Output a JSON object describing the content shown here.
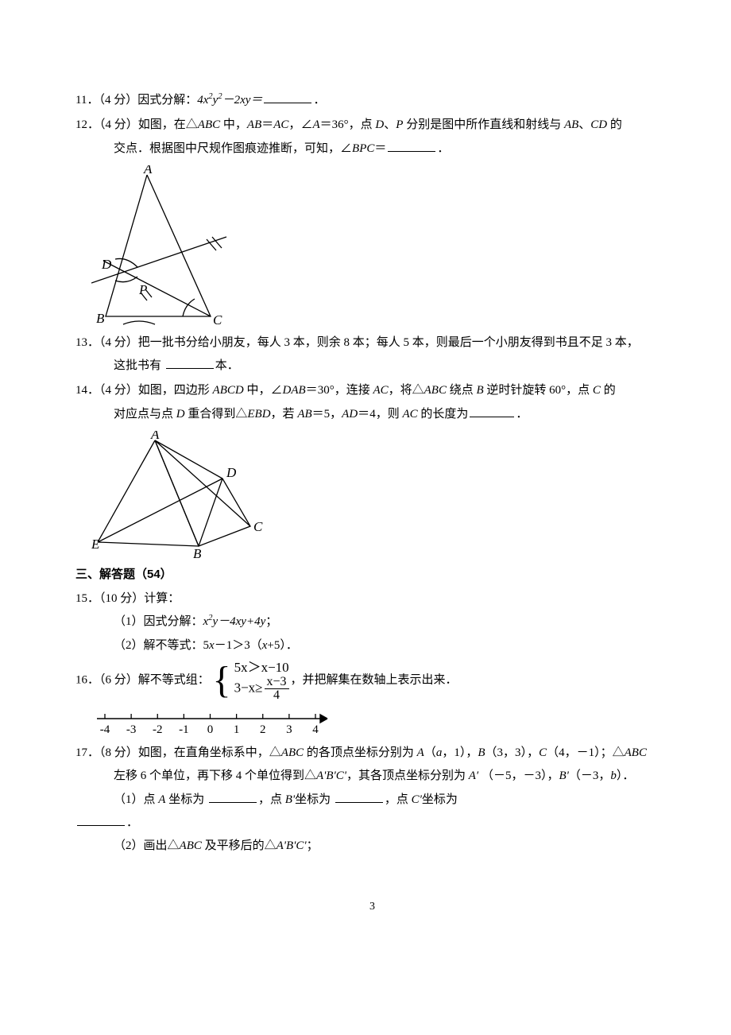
{
  "page": {
    "number": "3"
  },
  "q11": {
    "label": "11．",
    "points": "（4 分）",
    "text_a": "因式分解：",
    "expr": "4x²y² － 2xy＝",
    "tail": "．"
  },
  "q12": {
    "label": "12．",
    "points": "（4 分）",
    "text_a": "如图，在△",
    "abc": "ABC",
    "text_b": " 中，",
    "eq1_lhs": "AB",
    "eq1_mid": "＝",
    "eq1_rhs": "AC",
    "comma": "，",
    "ang_lhs": "∠A",
    "ang_mid": "＝",
    "ang_rhs": "36°",
    "text_c": "，点 ",
    "D": "D",
    "P": "P",
    "text_d": " 分别是图中所作直线和射线与 ",
    "AB": "AB",
    "CD": "CD",
    "text_e": " 的",
    "line2_a": "交点．根据图中尺规作图痕迹推断，可知，",
    "ang2_lhs": "∠BPC",
    "ang2_mid": "＝",
    "tail": "．",
    "fig": {
      "A": "A",
      "B": "B",
      "C": "C",
      "D": "D",
      "P": "P",
      "stroke": "#000000",
      "fill": "#ffffff"
    }
  },
  "q13": {
    "label": "13．",
    "points": "（4 分）",
    "text_a": "把一批书分给小朋友，每人 3 本，则余 8 本；每人 5 本，则最后一个小朋友得到书且不足 3 本，",
    "line2_a": "这批书有 ",
    "line2_b": "本．"
  },
  "q14": {
    "label": "14．",
    "points": "（4 分）",
    "text_a": "如图，四边形 ",
    "ABCD": "ABCD",
    "text_b": " 中，",
    "ang_lhs": "∠DAB",
    "ang_mid": "＝",
    "ang_rhs": "30°",
    "text_c": "，连接 ",
    "AC": "AC",
    "text_d": "，将△",
    "ABCtri": "ABC",
    "text_e": " 绕点 ",
    "B": "B",
    "text_f": " 逆时针旋转 60°，点 ",
    "C": "C",
    "text_g": " 的",
    "line2_a": "对应点与点 ",
    "D": "D",
    "line2_b": " 重合得到△",
    "EBD": "EBD",
    "line2_c": "，若 ",
    "ab_lhs": "AB",
    "ab_mid": "＝",
    "ab_rhs": "5",
    "line2_d": "，",
    "ad_lhs": "AD",
    "ad_mid": "＝",
    "ad_rhs": "4",
    "line2_e": "，则 ",
    "AC2": "AC",
    "line2_f": " 的长度为",
    "tail": "．",
    "fig": {
      "A": "A",
      "B": "B",
      "C": "C",
      "D": "D",
      "E": "E",
      "stroke": "#000000"
    }
  },
  "sec3": {
    "title": "三、解答题（54）"
  },
  "q15": {
    "label": "15．",
    "points": "（10 分）",
    "text": "计算：",
    "p1_label": "（1）",
    "p1_text": "因式分解：",
    "p1_expr": "x²y － 4xy+4y",
    "p1_tail": "；",
    "p2_label": "（2）",
    "p2_text": "解不等式：",
    "p2_expr": "5x － 1＞3（x+5）",
    "p2_tail": "．"
  },
  "q16": {
    "label": "16．",
    "points": "（6 分）",
    "text_a": "解不等式组：",
    "sys_row1": "5x＞x−10",
    "sys_row2_a": "3−x≥",
    "sys_row2_frac_num": "x−3",
    "sys_row2_frac_den": "4",
    "text_b": "，并把解集在数轴上表示出来．",
    "numberline": {
      "min": -4,
      "max": 4,
      "ticks": [
        "-4",
        "-3",
        "-2",
        "-1",
        "0",
        "1",
        "2",
        "3",
        "4"
      ],
      "stroke": "#000000"
    }
  },
  "q17": {
    "label": "17．",
    "points": "（8 分）",
    "text_a": "如图，在直角坐标系中，△",
    "ABC": "ABC",
    "text_b": " 的各顶点坐标分别为 ",
    "A": "A",
    "Acoord": "（a，1）",
    "B": "B",
    "Bcoord": "（3，3）",
    "C": "C",
    "Ccoord": "（4，－1）",
    "text_c": "；△",
    "ABC2": "ABC",
    "line2_a": "左移 6 个单位，再下移 4 个单位得到△",
    "ApBpCp": "A'B'C'",
    "line2_b": "，其各顶点坐标分别为 ",
    "Ap": "A′",
    "Apc": "（－5，－3）",
    "Bp": "B'",
    "Bpc": "（－3，b）",
    "tail2": "．",
    "p1_label": "（1）",
    "p1_a": "点 ",
    "p1_A": "A",
    "p1_b": " 坐标为 ",
    "p1_c": "，点 ",
    "p1_Bp": "B'",
    "p1_d": "坐标为 ",
    "p1_e": "，点 ",
    "p1_Cp": "C'",
    "p1_f": "坐标为",
    "p1_tail": "．",
    "p2_label": "（2）",
    "p2_text_a": "画出△",
    "p2_ABC": "ABC",
    "p2_text_b": " 及平移后的△",
    "p2_ApBpCp": "A'B'C'",
    "p2_tail": "；"
  }
}
